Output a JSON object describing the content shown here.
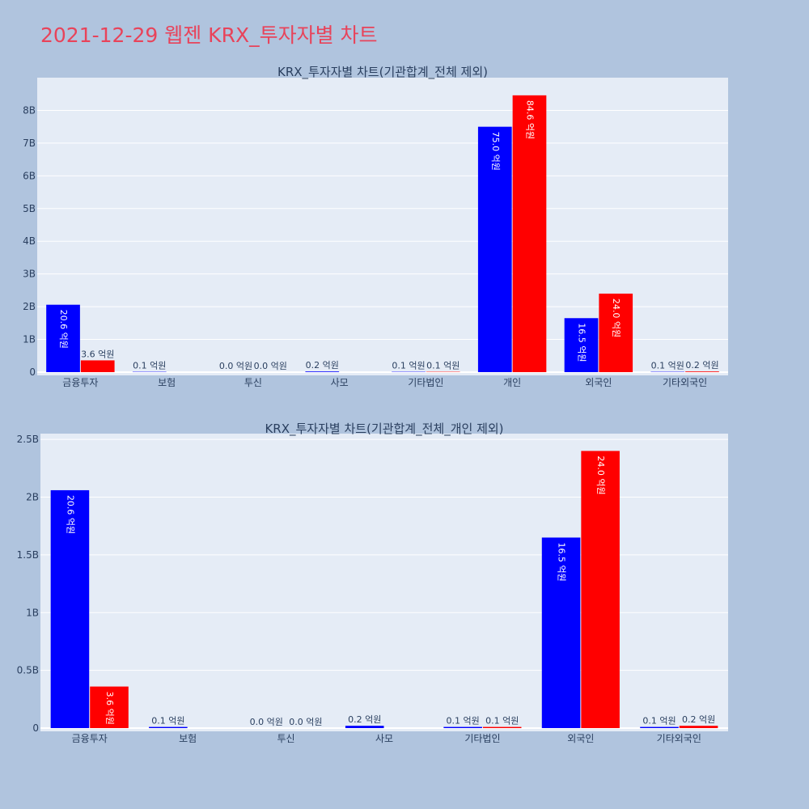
{
  "page": {
    "title": "2021-12-29 웹젠 KRX_투자자별 차트",
    "title_color": "#e8435a",
    "background": "#b0c4de",
    "plot_background": "#e5ecf6"
  },
  "colors": {
    "series_1": "#0000ff",
    "series_2": "#ff0000"
  },
  "chart_data": [
    {
      "type": "bar",
      "title": "KRX_투자자별 차트(기관합계_전체 제외)",
      "categories": [
        "금융투자",
        "보험",
        "투신",
        "사모",
        "기타법인",
        "개인",
        "외국인",
        "기타외국인"
      ],
      "series": [
        {
          "values": [
            2060000000,
            10000000,
            0,
            20000000,
            10000000,
            7500000000,
            1650000000,
            10000000
          ],
          "labels": [
            "20.6 억원",
            "0.1 억원",
            "0.0 억원",
            "0.2 억원",
            "0.1 억원",
            "75.0 억원",
            "16.5 억원",
            "0.1 억원"
          ]
        },
        {
          "values": [
            360000000,
            0,
            0,
            0,
            10000000,
            8460000000,
            2400000000,
            20000000
          ],
          "labels": [
            "3.6 억원",
            "",
            "0.0 억원",
            "",
            "0.1 억원",
            "84.6 억원",
            "24.0 억원",
            "0.2 억원"
          ]
        }
      ],
      "ylim": [
        0,
        9000000000
      ],
      "yticks": [
        0,
        1000000000,
        2000000000,
        3000000000,
        4000000000,
        5000000000,
        6000000000,
        7000000000,
        8000000000
      ],
      "ytick_labels": [
        "0",
        "1B",
        "2B",
        "3B",
        "4B",
        "5B",
        "6B",
        "7B",
        "8B"
      ],
      "grid": true
    },
    {
      "type": "bar",
      "title": "KRX_투자자별 차트(기관합계_전체_개인 제외)",
      "categories": [
        "금융투자",
        "보험",
        "투신",
        "사모",
        "기타법인",
        "외국인",
        "기타외국인"
      ],
      "series": [
        {
          "values": [
            2060000000,
            10000000,
            0,
            20000000,
            10000000,
            1650000000,
            10000000
          ],
          "labels": [
            "20.6 억원",
            "0.1 억원",
            "0.0 억원",
            "0.2 억원",
            "0.1 억원",
            "16.5 억원",
            "0.1 억원"
          ]
        },
        {
          "values": [
            360000000,
            0,
            0,
            0,
            10000000,
            2400000000,
            20000000
          ],
          "labels": [
            "3.6 억원",
            "",
            "0.0 억원",
            "",
            "0.1 억원",
            "24.0 억원",
            "0.2 억원"
          ]
        }
      ],
      "ylim": [
        0,
        2550000000
      ],
      "yticks": [
        0,
        500000000,
        1000000000,
        1500000000,
        2000000000,
        2500000000
      ],
      "ytick_labels": [
        "0",
        "0.5B",
        "1B",
        "1.5B",
        "2B",
        "2.5B"
      ],
      "grid": true
    }
  ]
}
